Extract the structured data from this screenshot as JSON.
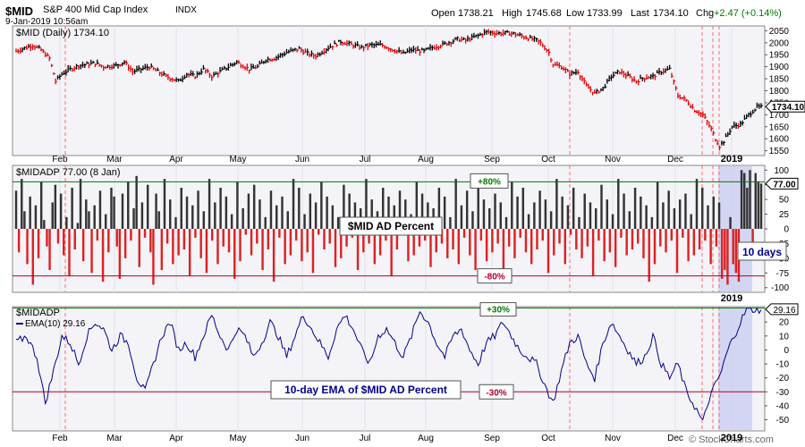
{
  "header": {
    "symbol": "$MID",
    "name": "S&P 400 Mid Cap Index",
    "exchange": "INDX",
    "date": "9-Jan-2019 10:56am",
    "open_label": "Open",
    "open": "1738.21",
    "high_label": "High",
    "high": "1745.68",
    "low_label": "Low",
    "low": "1733.99",
    "last_label": "Last",
    "last": "1734.10",
    "chg_label": "Chg",
    "chg": "+2.47 (+0.14%)",
    "chg_color": "#007a00",
    "copyright": "© StockCharts.com"
  },
  "colors": {
    "panel_bg": "#f4f4f8",
    "up_bar": "#000000",
    "down_bar": "#e00000",
    "adp_up": "#333333",
    "adp_down": "#dd2222",
    "ema_line": "#00008b",
    "green_line": "#007a00",
    "red_line": "#b0002a",
    "highlight": "#c8ccf0"
  },
  "chart_data": [
    {
      "type": "bar",
      "title": "$MID (Daily) 1734.10",
      "last_value_label": "1734.10",
      "x_labels": [
        "Feb",
        "Mar",
        "Apr",
        "May",
        "Jun",
        "Jul",
        "Aug",
        "Sep",
        "Oct",
        "Nov",
        "Dec",
        "2019"
      ],
      "y_ticks": [
        1550,
        1600,
        1650,
        1700,
        1750,
        1800,
        1850,
        1900,
        1950,
        2000,
        2050
      ],
      "ylim": [
        1530,
        2070
      ],
      "anchors": [
        [
          0,
          1965
        ],
        [
          8,
          1990
        ],
        [
          12,
          1970
        ],
        [
          16,
          1935
        ],
        [
          19,
          1840
        ],
        [
          22,
          1870
        ],
        [
          26,
          1890
        ],
        [
          30,
          1905
        ],
        [
          38,
          1915
        ],
        [
          42,
          1900
        ],
        [
          48,
          1905
        ],
        [
          52,
          1920
        ],
        [
          56,
          1880
        ],
        [
          60,
          1890
        ],
        [
          64,
          1900
        ],
        [
          68,
          1880
        ],
        [
          72,
          1860
        ],
        [
          78,
          1840
        ],
        [
          82,
          1870
        ],
        [
          86,
          1860
        ],
        [
          90,
          1890
        ],
        [
          94,
          1860
        ],
        [
          98,
          1880
        ],
        [
          102,
          1900
        ],
        [
          106,
          1920
        ],
        [
          112,
          1890
        ],
        [
          116,
          1900
        ],
        [
          120,
          1930
        ],
        [
          124,
          1935
        ],
        [
          130,
          1960
        ],
        [
          136,
          1975
        ],
        [
          140,
          1955
        ],
        [
          144,
          1945
        ],
        [
          150,
          1980
        ],
        [
          156,
          2005
        ],
        [
          160,
          1995
        ],
        [
          166,
          1980
        ],
        [
          170,
          1990
        ],
        [
          176,
          1990
        ],
        [
          180,
          1975
        ],
        [
          186,
          1955
        ],
        [
          190,
          1970
        ],
        [
          196,
          1965
        ],
        [
          200,
          1980
        ],
        [
          206,
          1995
        ],
        [
          212,
          2015
        ],
        [
          216,
          2010
        ],
        [
          222,
          2030
        ],
        [
          226,
          2045
        ],
        [
          232,
          2040
        ],
        [
          238,
          2040
        ],
        [
          242,
          2030
        ],
        [
          246,
          2020
        ],
        [
          250,
          2010
        ],
        [
          252,
          2000
        ],
        [
          256,
          1960
        ],
        [
          258,
          1910
        ],
        [
          262,
          1900
        ],
        [
          266,
          1870
        ],
        [
          270,
          1880
        ],
        [
          274,
          1820
        ],
        [
          278,
          1790
        ],
        [
          282,
          1810
        ],
        [
          286,
          1860
        ],
        [
          290,
          1880
        ],
        [
          294,
          1860
        ],
        [
          298,
          1840
        ],
        [
          302,
          1855
        ],
        [
          306,
          1860
        ],
        [
          310,
          1880
        ],
        [
          314,
          1890
        ],
        [
          318,
          1780
        ],
        [
          322,
          1760
        ],
        [
          326,
          1720
        ],
        [
          330,
          1700
        ],
        [
          334,
          1640
        ],
        [
          336,
          1600
        ],
        [
          338,
          1570
        ],
        [
          340,
          1590
        ],
        [
          342,
          1620
        ],
        [
          344,
          1650
        ],
        [
          348,
          1660
        ],
        [
          352,
          1700
        ],
        [
          356,
          1732
        ]
      ]
    },
    {
      "type": "bar",
      "title": "$MIDADP 77.00 (8 Jan)",
      "last_value_label": "77.00",
      "annotation": "$MID AD Percent",
      "days_label": "10 days",
      "upper_label": "+80%",
      "lower_label": "-80%",
      "upper_level": 80,
      "lower_level": -80,
      "x_labels": [
        "2019"
      ],
      "y_ticks": [
        -100,
        -75,
        -50,
        -25,
        0,
        25,
        50,
        75,
        100
      ],
      "ylim": [
        -108,
        108
      ],
      "values": [
        65,
        -40,
        85,
        30,
        -60,
        55,
        -95,
        40,
        -50,
        80,
        15,
        -30,
        -70,
        45,
        75,
        -25,
        60,
        -45,
        20,
        -80,
        70,
        -35,
        10,
        85,
        -55,
        50,
        30,
        -75,
        40,
        -20,
        65,
        -90,
        25,
        -40,
        70,
        55,
        -30,
        -85,
        60,
        -50,
        80,
        -20,
        35,
        90,
        -65,
        45,
        -15,
        75,
        -40,
        -95,
        60,
        30,
        -70,
        85,
        -25,
        50,
        -60,
        20,
        -45,
        70,
        -35,
        55,
        -80,
        40,
        -15,
        65,
        -50,
        30,
        -75,
        85,
        -20,
        45,
        -60,
        70,
        -30,
        55,
        -40,
        25,
        -85,
        80,
        -55,
        35,
        -10,
        60,
        -45,
        75,
        -25,
        50,
        -70,
        20,
        -35,
        65,
        -90,
        40,
        -15,
        55,
        -60,
        30,
        -45,
        85,
        -20,
        70,
        -55,
        25,
        -40,
        60,
        -75,
        45,
        -10,
        80,
        -35,
        55,
        -25,
        40,
        -65,
        20,
        -50,
        75,
        -30,
        60,
        -15,
        45,
        -70,
        35,
        -40,
        85,
        -25,
        50,
        -60,
        30,
        -45,
        70,
        -20,
        55,
        -80,
        40,
        -35,
        65,
        -10,
        50,
        -55,
        25,
        -45,
        80,
        -30,
        60,
        -20,
        45,
        -65,
        35,
        -40,
        70,
        -25,
        55,
        -50,
        20,
        -35,
        85,
        -60,
        40,
        -15,
        65,
        -45,
        30,
        -70,
        75,
        -20,
        50,
        -55,
        35,
        -40,
        60,
        -25,
        45,
        -85,
        20,
        -30,
        80,
        -50,
        55,
        -15,
        70,
        -40,
        25,
        -60,
        45,
        -35,
        65,
        -20,
        50,
        -75,
        30,
        -45,
        85,
        -25,
        55,
        -60,
        40,
        -10,
        70,
        -35,
        20,
        -50,
        60,
        -30,
        45,
        -80,
        35,
        -20,
        75,
        -55,
        50,
        -40,
        25,
        -65,
        85,
        -15,
        60,
        -45,
        30,
        -35,
        70,
        -25,
        55,
        -50,
        40,
        -90,
        20,
        -60,
        80,
        -30,
        45,
        -40,
        65,
        -20,
        35,
        -75,
        50,
        -15,
        60,
        -55,
        25,
        -45,
        85,
        -35,
        70,
        -20,
        40,
        -60,
        55,
        -30,
        45,
        -85,
        -70,
        -95,
        20,
        -60,
        -75,
        -90,
        100,
        95,
        70,
        100,
        -50,
        95,
        80,
        77
      ],
      "highlight_days": 10
    },
    {
      "type": "line",
      "title": "$MIDADP",
      "series": [
        {
          "name": "EMA(10) 29.16"
        }
      ],
      "last_value_label": "29.16",
      "annotation": "10-day EMA of $MID AD Percent",
      "upper_label": "+30%",
      "lower_label": "-30%",
      "upper_level": 30,
      "lower_level": -30,
      "x_labels": [
        "Feb",
        "Mar",
        "Apr",
        "May",
        "Jun",
        "Jul",
        "Aug",
        "Sep",
        "Oct",
        "Nov",
        "Dec",
        "2019"
      ],
      "y_ticks": [
        -50,
        -40,
        -30,
        -20,
        -10,
        0,
        10,
        20
      ],
      "ylim": [
        -58,
        31
      ],
      "anchors": [
        [
          0,
          5
        ],
        [
          5,
          10
        ],
        [
          10,
          -5
        ],
        [
          14,
          -38
        ],
        [
          18,
          -15
        ],
        [
          22,
          10
        ],
        [
          26,
          5
        ],
        [
          30,
          -10
        ],
        [
          34,
          10
        ],
        [
          38,
          20
        ],
        [
          42,
          15
        ],
        [
          46,
          0
        ],
        [
          50,
          10
        ],
        [
          54,
          5
        ],
        [
          58,
          -20
        ],
        [
          62,
          -30
        ],
        [
          66,
          -10
        ],
        [
          70,
          10
        ],
        [
          74,
          20
        ],
        [
          78,
          0
        ],
        [
          82,
          5
        ],
        [
          86,
          -5
        ],
        [
          90,
          10
        ],
        [
          94,
          25
        ],
        [
          98,
          10
        ],
        [
          102,
          0
        ],
        [
          106,
          15
        ],
        [
          110,
          10
        ],
        [
          114,
          -5
        ],
        [
          118,
          5
        ],
        [
          122,
          20
        ],
        [
          126,
          10
        ],
        [
          130,
          -5
        ],
        [
          134,
          10
        ],
        [
          138,
          25
        ],
        [
          142,
          15
        ],
        [
          146,
          5
        ],
        [
          150,
          -5
        ],
        [
          154,
          15
        ],
        [
          158,
          25
        ],
        [
          162,
          15
        ],
        [
          166,
          0
        ],
        [
          170,
          -10
        ],
        [
          174,
          10
        ],
        [
          178,
          15
        ],
        [
          182,
          5
        ],
        [
          186,
          -5
        ],
        [
          190,
          10
        ],
        [
          194,
          28
        ],
        [
          198,
          20
        ],
        [
          202,
          5
        ],
        [
          206,
          -5
        ],
        [
          210,
          10
        ],
        [
          214,
          15
        ],
        [
          218,
          0
        ],
        [
          222,
          -10
        ],
        [
          226,
          5
        ],
        [
          230,
          10
        ],
        [
          234,
          20
        ],
        [
          238,
          10
        ],
        [
          242,
          0
        ],
        [
          246,
          -5
        ],
        [
          250,
          -10
        ],
        [
          254,
          -25
        ],
        [
          258,
          -38
        ],
        [
          262,
          -15
        ],
        [
          266,
          5
        ],
        [
          270,
          10
        ],
        [
          274,
          -10
        ],
        [
          278,
          -20
        ],
        [
          282,
          5
        ],
        [
          286,
          20
        ],
        [
          290,
          10
        ],
        [
          294,
          0
        ],
        [
          298,
          -10
        ],
        [
          302,
          -5
        ],
        [
          306,
          10
        ],
        [
          310,
          -10
        ],
        [
          314,
          -20
        ],
        [
          318,
          -10
        ],
        [
          322,
          -30
        ],
        [
          326,
          -40
        ],
        [
          330,
          -52
        ],
        [
          333,
          -35
        ],
        [
          336,
          -25
        ],
        [
          339,
          -15
        ],
        [
          342,
          0
        ],
        [
          345,
          10
        ],
        [
          348,
          20
        ],
        [
          351,
          29
        ]
      ]
    }
  ]
}
